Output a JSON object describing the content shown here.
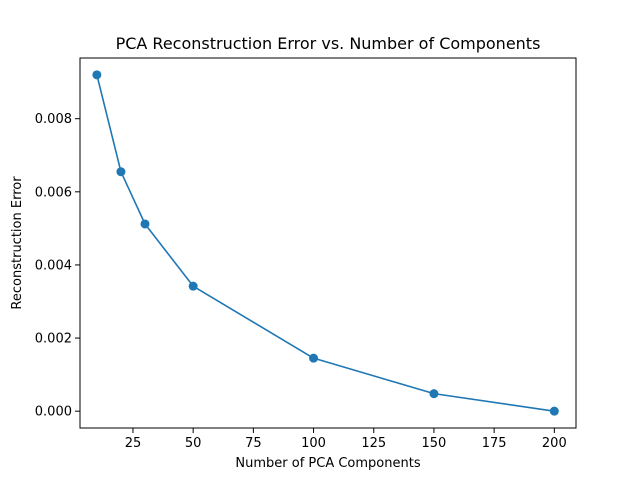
{
  "chart_data": {
    "type": "line",
    "title": "PCA Reconstruction Error vs. Number of Components",
    "xlabel": "Number of PCA Components",
    "ylabel": "Reconstruction Error",
    "xlim": [
      3,
      209
    ],
    "ylim": [
      -0.00046,
      0.00966
    ],
    "grid": false,
    "x_ticks": [
      25,
      50,
      75,
      100,
      125,
      150,
      175,
      200
    ],
    "y_ticks": [
      0.0,
      0.002,
      0.004,
      0.006,
      0.008
    ],
    "x_tick_labels": [
      "25",
      "50",
      "75",
      "100",
      "125",
      "150",
      "175",
      "200"
    ],
    "y_tick_labels": [
      "0.000",
      "0.002",
      "0.004",
      "0.006",
      "0.008"
    ],
    "series": [
      {
        "color": "#1f77b4",
        "marker": "circle",
        "x": [
          10,
          20,
          30,
          50,
          100,
          150,
          200
        ],
        "y": [
          0.0092,
          0.00655,
          0.00512,
          0.00342,
          0.00145,
          0.00048,
          0.0
        ]
      }
    ]
  }
}
